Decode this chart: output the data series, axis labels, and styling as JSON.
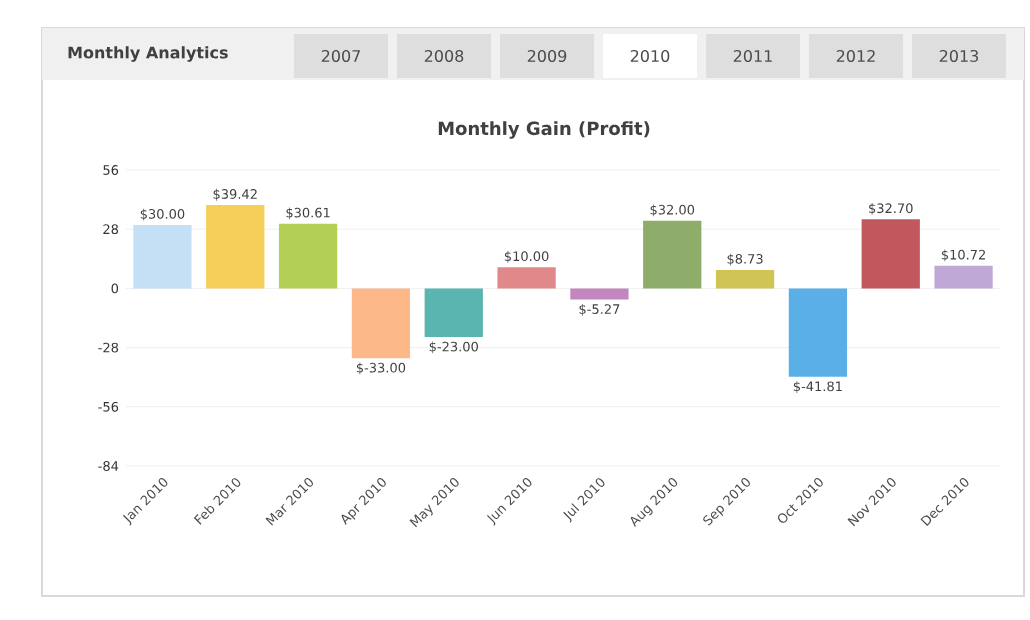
{
  "chart_data": {
    "type": "bar",
    "title": "Monthly Gain (Profit)",
    "annotations": [
      "Monthly Analytics",
      "2007",
      "2008",
      "2009",
      "2010",
      "2011",
      "2012",
      "2013"
    ],
    "categories": [
      "Jan 2010",
      "Feb 2010",
      "Mar 2010",
      "Apr 2010",
      "May 2010",
      "Jun 2010",
      "Jul 2010",
      "Aug 2010",
      "Sep 2010",
      "Oct 2010",
      "Nov 2010",
      "Dec 2010"
    ],
    "values": [
      30.0,
      39.42,
      30.61,
      -33.0,
      -23.0,
      10.0,
      -5.27,
      32.0,
      8.73,
      -41.81,
      32.7,
      10.72
    ],
    "value_labels": [
      "$30.00",
      "$39.42",
      "$30.61",
      "$-33.00",
      "$-23.00",
      "$10.00",
      "$-5.27",
      "$32.00",
      "$8.73",
      "$-41.81",
      "$32.70",
      "$10.72"
    ],
    "colors": [
      "#c5e0f5",
      "#f5ce5a",
      "#b3cf55",
      "#fdb889",
      "#5ab5b0",
      "#e0888a",
      "#c287c0",
      "#8fad6a",
      "#cfc454",
      "#5ab0e6",
      "#c0585e",
      "#c0a8d6"
    ],
    "ylim": [
      -84,
      56
    ],
    "yticks": [
      -84,
      -56,
      -28,
      0,
      28,
      56
    ],
    "grid": "y"
  }
}
